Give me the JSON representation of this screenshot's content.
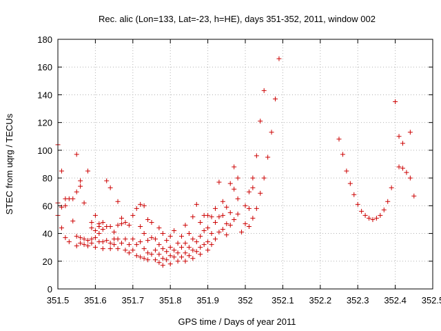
{
  "chart_data": {
    "type": "scatter",
    "title": "Rec. alic (Lon=133, Lat=-23, h=HE), days 351-352, 2011, window 002",
    "xlabel": "GPS time / Days of year 2011",
    "ylabel": "STEC from uqrg / TECUs",
    "xlim": [
      351.5,
      352.5
    ],
    "ylim": [
      0,
      180
    ],
    "xticks": [
      351.5,
      351.6,
      351.7,
      351.8,
      351.9,
      352,
      352.1,
      352.2,
      352.3,
      352.4,
      352.5
    ],
    "xtick_labels": [
      "351.5",
      "351.6",
      "351.7",
      "351.8",
      "351.9",
      "352",
      "352.1",
      "352.2",
      "352.3",
      "352.4",
      "352.5"
    ],
    "yticks": [
      0,
      20,
      40,
      60,
      80,
      100,
      120,
      140,
      160,
      180
    ],
    "ytick_labels": [
      "0",
      "20",
      "40",
      "60",
      "80",
      "100",
      "120",
      "140",
      "160",
      "180"
    ],
    "grid": true,
    "marker": "+",
    "color": "#cc0000",
    "points": [
      [
        351.5,
        104
      ],
      [
        351.5,
        62
      ],
      [
        351.5,
        53
      ],
      [
        351.51,
        59
      ],
      [
        351.51,
        44
      ],
      [
        351.51,
        85
      ],
      [
        351.52,
        60
      ],
      [
        351.52,
        65
      ],
      [
        351.52,
        37
      ],
      [
        351.53,
        65
      ],
      [
        351.53,
        34
      ],
      [
        351.54,
        49
      ],
      [
        351.54,
        65
      ],
      [
        351.55,
        97
      ],
      [
        351.55,
        70
      ],
      [
        351.55,
        38
      ],
      [
        351.55,
        31
      ],
      [
        351.56,
        74
      ],
      [
        351.56,
        78
      ],
      [
        351.56,
        37
      ],
      [
        351.56,
        33
      ],
      [
        351.57,
        62
      ],
      [
        351.57,
        36
      ],
      [
        351.57,
        32
      ],
      [
        351.58,
        85
      ],
      [
        351.58,
        35
      ],
      [
        351.58,
        31
      ],
      [
        351.59,
        48
      ],
      [
        351.59,
        44
      ],
      [
        351.59,
        36
      ],
      [
        351.59,
        33
      ],
      [
        351.6,
        53
      ],
      [
        351.6,
        42
      ],
      [
        351.6,
        37
      ],
      [
        351.6,
        30
      ],
      [
        351.61,
        47
      ],
      [
        351.61,
        45
      ],
      [
        351.61,
        40
      ],
      [
        351.61,
        34
      ],
      [
        351.62,
        48
      ],
      [
        351.62,
        43
      ],
      [
        351.62,
        34
      ],
      [
        351.62,
        29
      ],
      [
        351.63,
        78
      ],
      [
        351.63,
        45
      ],
      [
        351.63,
        35
      ],
      [
        351.64,
        73
      ],
      [
        351.64,
        45
      ],
      [
        351.64,
        33
      ],
      [
        351.64,
        29
      ],
      [
        351.65,
        41
      ],
      [
        351.65,
        36
      ],
      [
        351.65,
        32
      ],
      [
        351.66,
        63
      ],
      [
        351.66,
        46
      ],
      [
        351.66,
        36
      ],
      [
        351.66,
        29
      ],
      [
        351.67,
        51
      ],
      [
        351.67,
        47
      ],
      [
        351.67,
        33
      ],
      [
        351.68,
        48
      ],
      [
        351.68,
        36
      ],
      [
        351.68,
        28
      ],
      [
        351.69,
        46
      ],
      [
        351.69,
        32
      ],
      [
        351.69,
        26
      ],
      [
        351.7,
        53
      ],
      [
        351.7,
        36
      ],
      [
        351.7,
        28
      ],
      [
        351.71,
        58
      ],
      [
        351.71,
        32
      ],
      [
        351.71,
        24
      ],
      [
        351.72,
        61
      ],
      [
        351.72,
        45
      ],
      [
        351.72,
        34
      ],
      [
        351.72,
        23
      ],
      [
        351.73,
        60
      ],
      [
        351.73,
        40
      ],
      [
        351.73,
        29
      ],
      [
        351.73,
        22
      ],
      [
        351.74,
        50
      ],
      [
        351.74,
        35
      ],
      [
        351.74,
        26
      ],
      [
        351.74,
        21
      ],
      [
        351.75,
        48
      ],
      [
        351.75,
        37
      ],
      [
        351.75,
        25
      ],
      [
        351.76,
        36
      ],
      [
        351.76,
        28
      ],
      [
        351.76,
        21
      ],
      [
        351.77,
        44
      ],
      [
        351.77,
        32
      ],
      [
        351.77,
        25
      ],
      [
        351.77,
        19
      ],
      [
        351.78,
        40
      ],
      [
        351.78,
        29
      ],
      [
        351.78,
        22
      ],
      [
        351.78,
        17
      ],
      [
        351.79,
        35
      ],
      [
        351.79,
        27
      ],
      [
        351.79,
        21
      ],
      [
        351.8,
        38
      ],
      [
        351.8,
        30
      ],
      [
        351.8,
        24
      ],
      [
        351.8,
        18
      ],
      [
        351.81,
        42
      ],
      [
        351.81,
        28
      ],
      [
        351.81,
        23
      ],
      [
        351.82,
        33
      ],
      [
        351.82,
        26
      ],
      [
        351.82,
        20
      ],
      [
        351.83,
        38
      ],
      [
        351.83,
        30
      ],
      [
        351.83,
        23
      ],
      [
        351.84,
        46
      ],
      [
        351.84,
        33
      ],
      [
        351.84,
        26
      ],
      [
        351.84,
        20
      ],
      [
        351.85,
        40
      ],
      [
        351.85,
        30
      ],
      [
        351.85,
        24
      ],
      [
        351.86,
        52
      ],
      [
        351.86,
        36
      ],
      [
        351.86,
        28
      ],
      [
        351.86,
        22
      ],
      [
        351.87,
        61
      ],
      [
        351.87,
        34
      ],
      [
        351.87,
        27
      ],
      [
        351.88,
        48
      ],
      [
        351.88,
        38
      ],
      [
        351.88,
        30
      ],
      [
        351.88,
        25
      ],
      [
        351.89,
        53
      ],
      [
        351.89,
        42
      ],
      [
        351.89,
        32
      ],
      [
        351.9,
        53
      ],
      [
        351.9,
        44
      ],
      [
        351.9,
        34
      ],
      [
        351.9,
        28
      ],
      [
        351.91,
        52
      ],
      [
        351.91,
        40
      ],
      [
        351.91,
        32
      ],
      [
        351.92,
        58
      ],
      [
        351.92,
        48
      ],
      [
        351.92,
        36
      ],
      [
        351.93,
        77
      ],
      [
        351.93,
        52
      ],
      [
        351.93,
        41
      ],
      [
        351.94,
        63
      ],
      [
        351.94,
        53
      ],
      [
        351.94,
        43
      ],
      [
        351.95,
        59
      ],
      [
        351.95,
        47
      ],
      [
        351.95,
        39
      ],
      [
        351.96,
        76
      ],
      [
        351.96,
        55
      ],
      [
        351.96,
        46
      ],
      [
        351.97,
        88
      ],
      [
        351.97,
        72
      ],
      [
        351.97,
        50
      ],
      [
        351.98,
        80
      ],
      [
        351.98,
        65
      ],
      [
        351.98,
        54
      ],
      [
        351.99,
        41
      ],
      [
        352.0,
        60
      ],
      [
        352.0,
        47
      ],
      [
        352.01,
        70
      ],
      [
        352.01,
        58
      ],
      [
        352.01,
        45
      ],
      [
        352.02,
        73
      ],
      [
        352.02,
        80
      ],
      [
        352.02,
        51
      ],
      [
        352.03,
        96
      ],
      [
        352.03,
        58
      ],
      [
        352.04,
        69
      ],
      [
        352.04,
        121
      ],
      [
        352.05,
        80
      ],
      [
        352.05,
        143
      ],
      [
        352.06,
        95
      ],
      [
        352.07,
        113
      ],
      [
        352.08,
        137
      ],
      [
        352.09,
        166
      ],
      [
        352.25,
        108
      ],
      [
        352.26,
        97
      ],
      [
        352.27,
        85
      ],
      [
        352.28,
        76
      ],
      [
        352.29,
        68
      ],
      [
        352.3,
        61
      ],
      [
        352.31,
        56
      ],
      [
        352.32,
        53
      ],
      [
        352.33,
        51
      ],
      [
        352.34,
        50
      ],
      [
        352.35,
        51
      ],
      [
        352.36,
        53
      ],
      [
        352.37,
        57
      ],
      [
        352.38,
        63
      ],
      [
        352.39,
        73
      ],
      [
        352.4,
        135
      ],
      [
        352.41,
        110
      ],
      [
        352.41,
        88
      ],
      [
        352.42,
        105
      ],
      [
        352.42,
        87
      ],
      [
        352.43,
        84
      ],
      [
        352.44,
        113
      ],
      [
        352.44,
        80
      ],
      [
        352.45,
        67
      ]
    ]
  }
}
